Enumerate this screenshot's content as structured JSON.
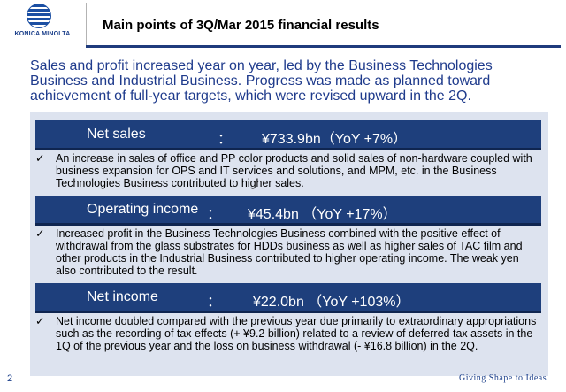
{
  "logo": {
    "text": "KONICA MINOLTA"
  },
  "header": {
    "title": "Main points of 3Q/Mar 2015 financial results"
  },
  "lead": "Sales and profit increased year on year, led by the Business Technologies Business and Industrial Business.  Progress was made as planned toward achievement of full-year targets, which were revised upward in the 2Q.",
  "sections": [
    {
      "label": "Net sales",
      "colon": "：",
      "value": "¥733.9bn（YoY  +7%）",
      "check": "✓",
      "bullet": "An increase in sales of office and PP color products and solid sales of non-hardware coupled with business expansion for OPS and IT services and solutions, and MPM, etc. in the Business Technologies Business contributed to higher sales."
    },
    {
      "label": "Operating income",
      "colon": "：",
      "value": "¥45.4bn （YoY +17%）",
      "check": "✓",
      "bullet": "Increased profit in the Business Technologies Business combined with the positive effect of withdrawal from the glass substrates for HDDs business as well as higher sales of TAC film and other products in the Industrial Business contributed to higher operating income. The weak yen also contributed to the result."
    },
    {
      "label": "Net income",
      "colon": "：",
      "value": "¥22.0bn （YoY +103%）",
      "check": "✓",
      "bullet": "Net income doubled compared with the previous year due primarily to extraordinary appropriations such as the recording of tax effects (+ ¥9.2 billion) related to a review of deferred tax assets in the 1Q of the previous year and the loss on business withdrawal (- ¥16.8 billion) in the 2Q."
    }
  ],
  "footer": {
    "page_number": "2",
    "tagline": "Giving Shape to Ideas"
  }
}
